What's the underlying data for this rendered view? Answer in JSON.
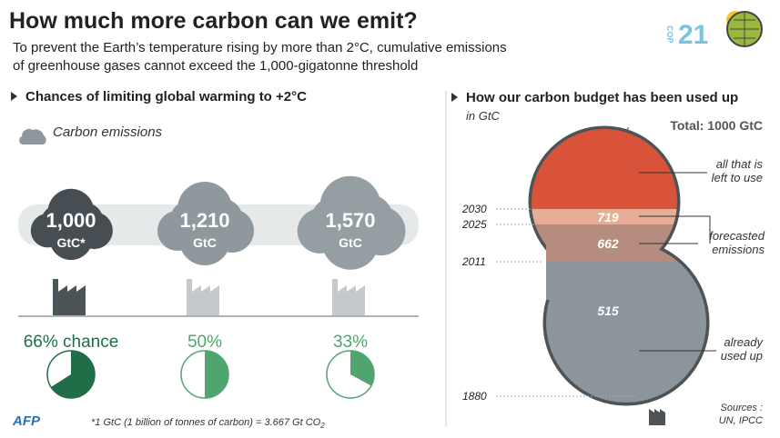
{
  "header": {
    "title": "How much more carbon can we emit?",
    "subtitle_lines": [
      "To prevent the Earth’s temperature rising by more than 2°C, cumulative emissions",
      "of greenhouse gases cannot exceed the 1,000-gigatonne threshold"
    ],
    "logo": {
      "prefix": "COP",
      "number": "21"
    }
  },
  "left": {
    "title": "Chances of limiting global warming to +2°C",
    "legend": "Carbon emissions",
    "scenarios": [
      {
        "amount": "1,000",
        "unit": "GtC*"
      },
      {
        "amount": "1,210",
        "unit": "GtC"
      },
      {
        "amount": "1,570",
        "unit": "GtC"
      }
    ],
    "chance": {
      "values": [
        66,
        50,
        33
      ],
      "value_labels": [
        "66% chance",
        "50%",
        "33%"
      ],
      "colors": [
        "#1f6e47",
        "#4fa46f",
        "#4fa46f"
      ]
    }
  },
  "right": {
    "title": "How our carbon budget has been used up",
    "unit": "in GtC",
    "total": "Total: 1000 GtC",
    "years": [
      "2030",
      "2025",
      "2011",
      "1880"
    ],
    "amounts": [
      "719",
      "662",
      "515"
    ],
    "labels": [
      "all that is left to use",
      "forecasted emissions",
      "already used up"
    ]
  },
  "footer": {
    "credit": "AFP",
    "footnote": "*1 GtC (1 billion of tonnes of carbon)  = 3.667 Gt CO",
    "footnote_sub": "2",
    "sources": [
      "Sources :",
      "UN, IPCC"
    ]
  }
}
